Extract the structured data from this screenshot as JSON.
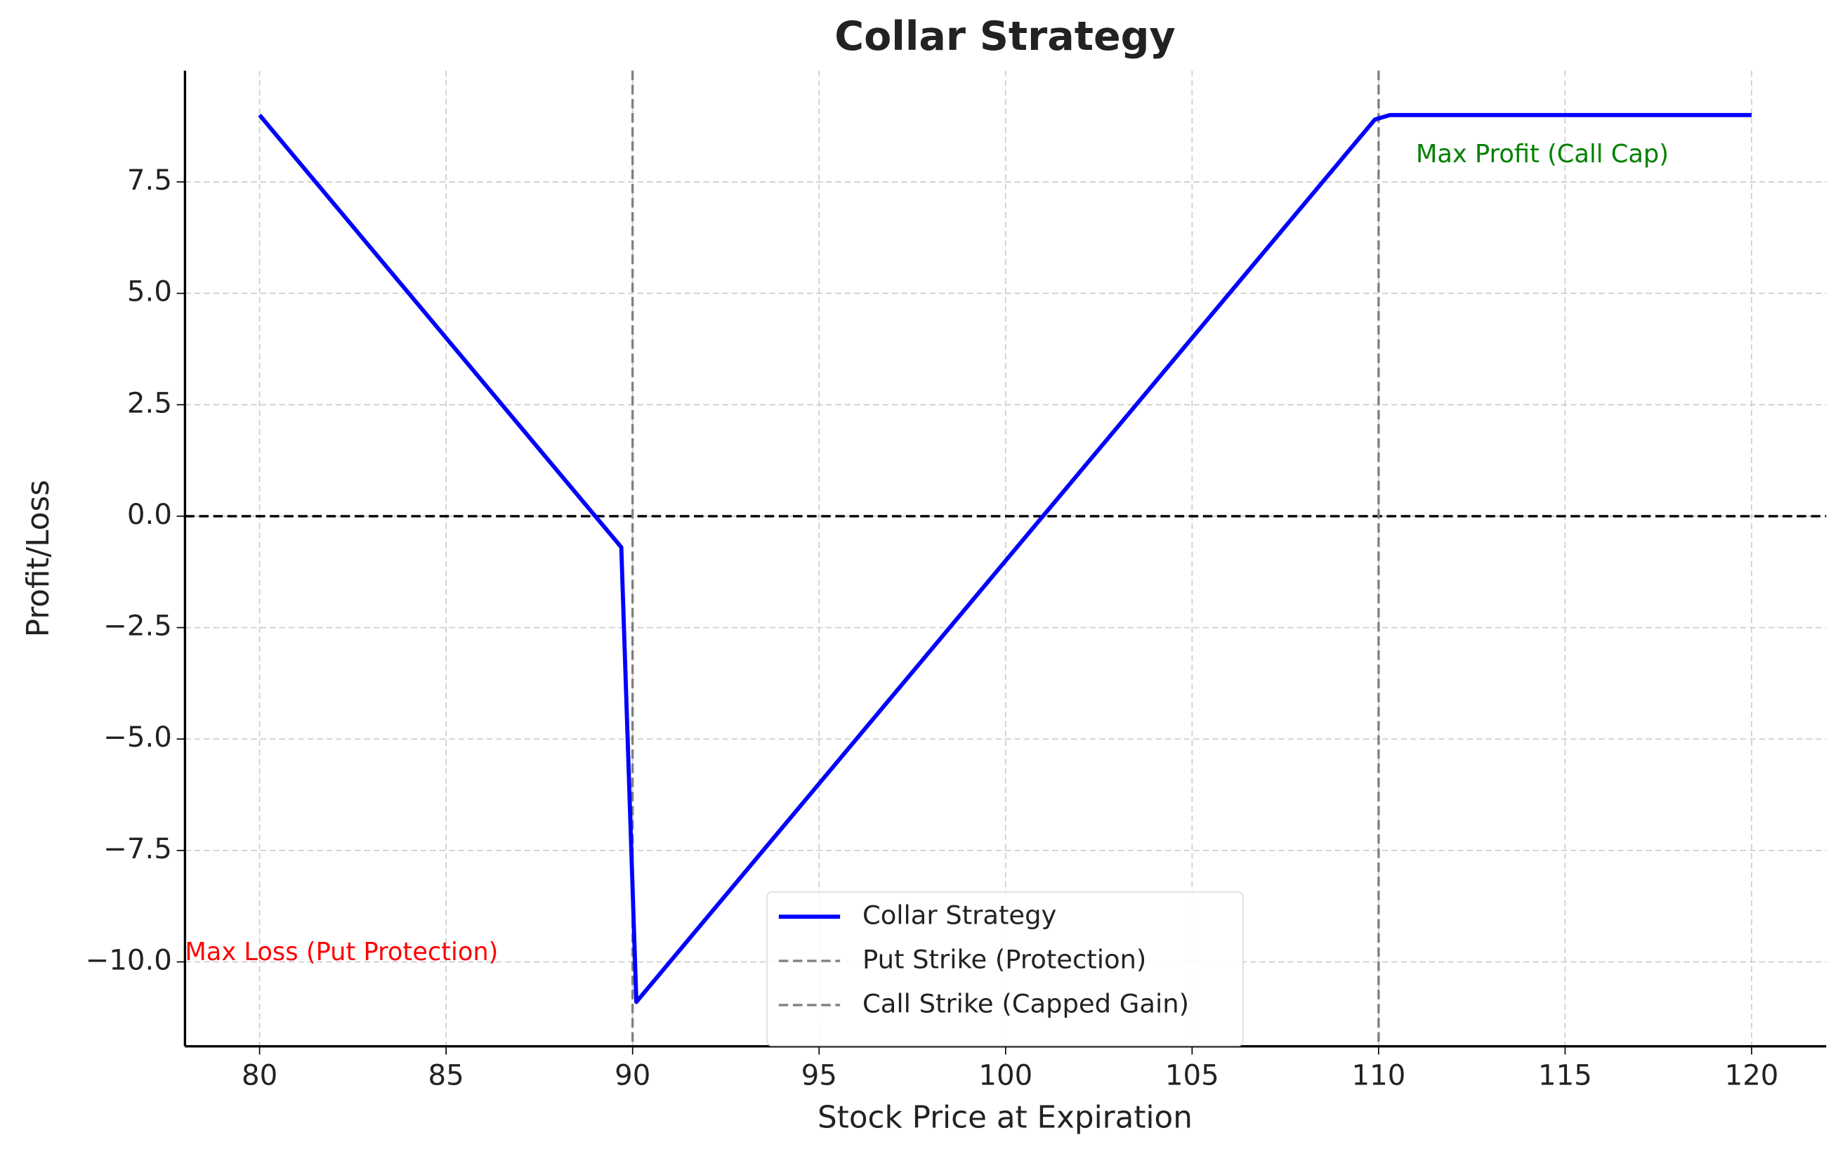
{
  "chart_data": {
    "type": "line",
    "title": "Collar Strategy",
    "x_label": "Stock Price at Expiration",
    "y_label": "Profit/Loss",
    "x": [
      80,
      89.697,
      90.101,
      109.899,
      110.303,
      120
    ],
    "series": [
      {
        "name": "Collar Strategy",
        "color": "#0000ff",
        "values": [
          9,
          -0.697,
          -10.899,
          8.899,
          9,
          9
        ]
      }
    ],
    "vlines": [
      {
        "name": "Put Strike (Protection)",
        "x": 90,
        "color": "#808080"
      },
      {
        "name": "Call Strike (Capped Gain)",
        "x": 110,
        "color": "#808080"
      }
    ],
    "hline": 0,
    "annotations": [
      {
        "text": "Max Profit (Call Cap)",
        "x": 111,
        "y": 8.1,
        "color": "green"
      },
      {
        "text": "Max Loss (Put Protection)",
        "x": 78,
        "y": -9.8,
        "color": "red"
      }
    ],
    "xlim": [
      78,
      122
    ],
    "ylim": [
      -11.894,
      9.995
    ],
    "xticks": [
      80,
      85,
      90,
      95,
      100,
      105,
      110,
      115,
      120
    ],
    "yticks": [
      {
        "value": -10,
        "label": "−10.0"
      },
      {
        "value": -7.5,
        "label": "−7.5"
      },
      {
        "value": -5,
        "label": "−5.0"
      },
      {
        "value": -2.5,
        "label": "−2.5"
      },
      {
        "value": 0,
        "label": "0.0"
      },
      {
        "value": 2.5,
        "label": "2.5"
      },
      {
        "value": 5,
        "label": "5.0"
      },
      {
        "value": 7.5,
        "label": "7.5"
      }
    ],
    "grid": true,
    "legend": "lower center"
  }
}
